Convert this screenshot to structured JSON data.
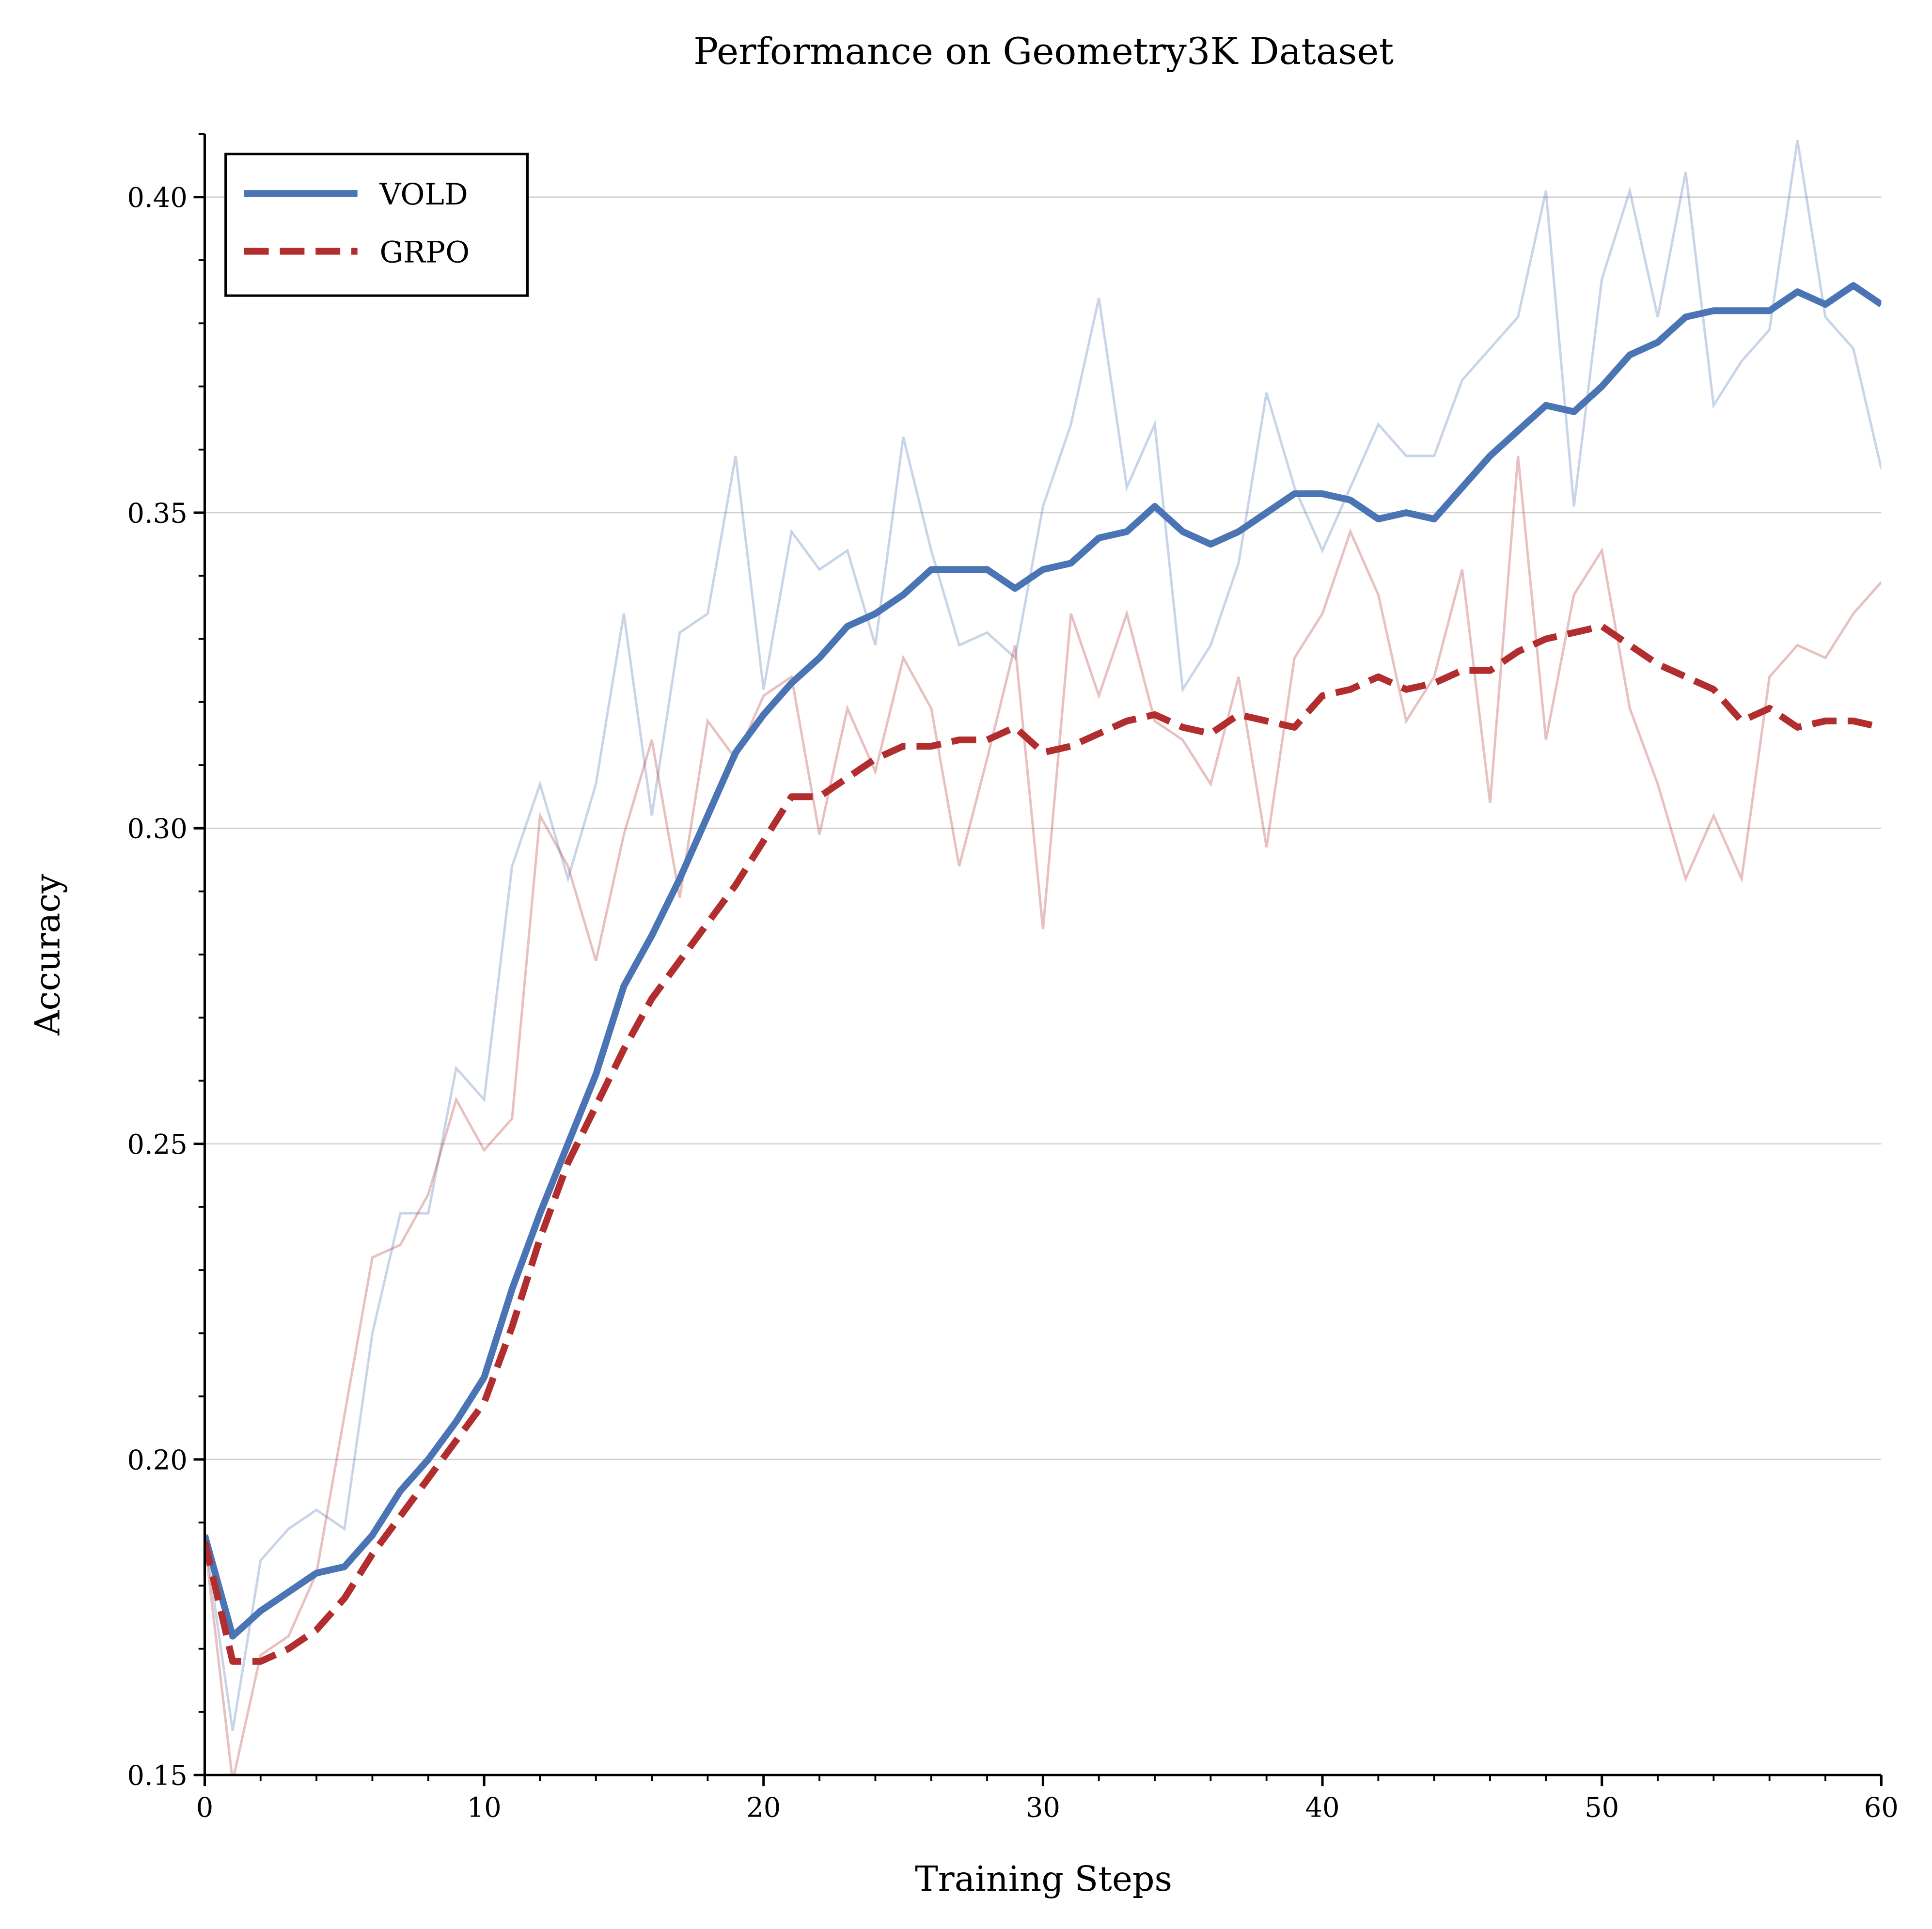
{
  "chart_data": {
    "type": "line",
    "title": "Performance on Geometry3K Dataset",
    "xlabel": "Training Steps",
    "ylabel": "Accuracy",
    "xlim": [
      0,
      60
    ],
    "ylim": [
      0.15,
      0.41
    ],
    "xticks": [
      "0",
      "10",
      "20",
      "30",
      "40",
      "50",
      "60"
    ],
    "yticks": [
      "0.15",
      "0.20",
      "0.25",
      "0.30",
      "0.35",
      "0.40"
    ],
    "grid": "horizontal",
    "legend_position": "top-left",
    "x": [
      0,
      1,
      2,
      3,
      4,
      5,
      6,
      7,
      8,
      9,
      10,
      11,
      12,
      13,
      14,
      15,
      16,
      17,
      18,
      19,
      20,
      21,
      22,
      23,
      24,
      25,
      26,
      27,
      28,
      29,
      30,
      31,
      32,
      33,
      34,
      35,
      36,
      37,
      38,
      39,
      40,
      41,
      42,
      43,
      44,
      45,
      46,
      47,
      48,
      49,
      50,
      51,
      52,
      53,
      54,
      55,
      56,
      57,
      58,
      59,
      60
    ],
    "series": [
      {
        "name": "VOLD",
        "color": "#4a74b4",
        "style": "solid",
        "smoothed": [
          0.188,
          0.172,
          0.176,
          0.179,
          0.182,
          0.183,
          0.188,
          0.195,
          0.2,
          0.206,
          0.213,
          0.227,
          0.239,
          0.25,
          0.261,
          0.275,
          0.283,
          0.292,
          0.302,
          0.312,
          0.318,
          0.323,
          0.327,
          0.332,
          0.334,
          0.337,
          0.341,
          0.341,
          0.341,
          0.338,
          0.341,
          0.342,
          0.346,
          0.347,
          0.351,
          0.347,
          0.345,
          0.347,
          0.35,
          0.353,
          0.353,
          0.352,
          0.349,
          0.35,
          0.349,
          0.354,
          0.359,
          0.363,
          0.367,
          0.366,
          0.37,
          0.375,
          0.377,
          0.381,
          0.382,
          0.382,
          0.382,
          0.385,
          0.383,
          0.386,
          0.383
        ],
        "raw": [
          0.188,
          0.157,
          0.184,
          0.189,
          0.192,
          0.189,
          0.22,
          0.239,
          0.239,
          0.262,
          0.257,
          0.294,
          0.307,
          0.292,
          0.307,
          0.334,
          0.302,
          0.331,
          0.334,
          0.359,
          0.322,
          0.347,
          0.341,
          0.344,
          0.329,
          0.362,
          0.344,
          0.329,
          0.331,
          0.327,
          0.351,
          0.364,
          0.384,
          0.354,
          0.364,
          0.322,
          0.329,
          0.342,
          0.369,
          0.354,
          0.344,
          0.354,
          0.364,
          0.359,
          0.359,
          0.371,
          0.376,
          0.381,
          0.401,
          0.351,
          0.387,
          0.401,
          0.381,
          0.404,
          0.367,
          0.374,
          0.379,
          0.409,
          0.381,
          0.376,
          0.357
        ]
      },
      {
        "name": "GRPO",
        "color": "#b22d2d",
        "style": "dashed",
        "smoothed": [
          0.187,
          0.168,
          0.168,
          0.17,
          0.173,
          0.178,
          0.185,
          0.191,
          0.197,
          0.203,
          0.209,
          0.221,
          0.235,
          0.247,
          0.256,
          0.265,
          0.273,
          0.279,
          0.285,
          0.291,
          0.298,
          0.305,
          0.305,
          0.308,
          0.311,
          0.313,
          0.313,
          0.314,
          0.314,
          0.316,
          0.312,
          0.313,
          0.315,
          0.317,
          0.318,
          0.316,
          0.315,
          0.318,
          0.317,
          0.316,
          0.321,
          0.322,
          0.324,
          0.322,
          0.323,
          0.325,
          0.325,
          0.328,
          0.33,
          0.331,
          0.332,
          0.329,
          0.326,
          0.324,
          0.322,
          0.317,
          0.319,
          0.316,
          0.317,
          0.317,
          0.316
        ],
        "raw": [
          0.187,
          0.149,
          0.169,
          0.172,
          0.182,
          0.207,
          0.232,
          0.234,
          0.242,
          0.257,
          0.249,
          0.254,
          0.302,
          0.294,
          0.279,
          0.299,
          0.314,
          0.289,
          0.317,
          0.311,
          0.321,
          0.324,
          0.299,
          0.319,
          0.309,
          0.327,
          0.319,
          0.294,
          0.311,
          0.329,
          0.284,
          0.334,
          0.321,
          0.334,
          0.317,
          0.314,
          0.307,
          0.324,
          0.297,
          0.327,
          0.334,
          0.347,
          0.337,
          0.317,
          0.324,
          0.341,
          0.304,
          0.359,
          0.314,
          0.337,
          0.344,
          0.319,
          0.307,
          0.292,
          0.302,
          0.292,
          0.324,
          0.329,
          0.327,
          0.334,
          0.339
        ]
      }
    ]
  }
}
